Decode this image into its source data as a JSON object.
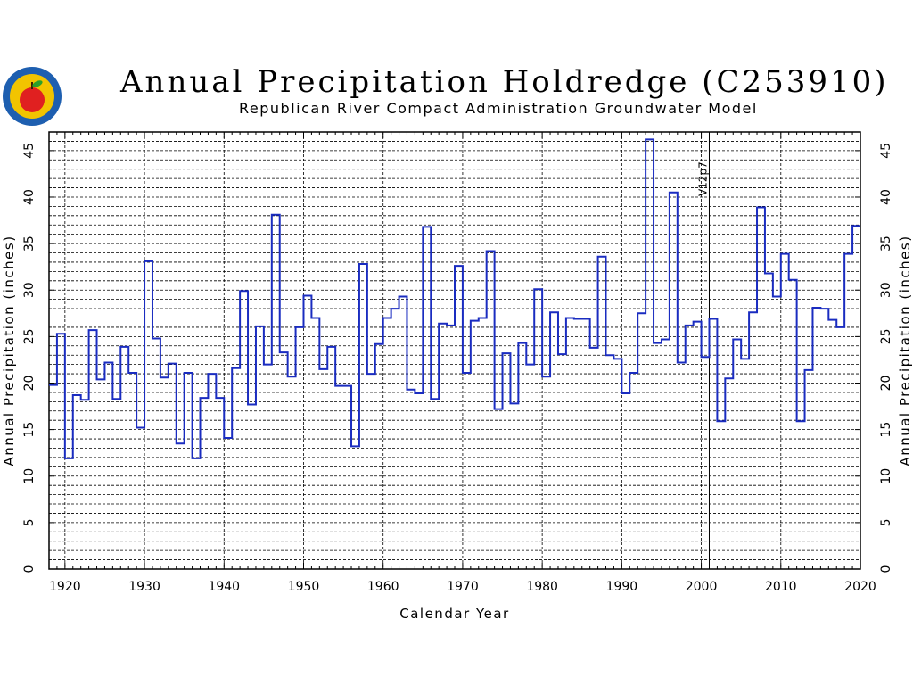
{
  "page": {
    "title": "Annual Precipitation Holdredge (C253910)",
    "subtitle": "Republican River Compact Administration Groundwater Model"
  },
  "colors": {
    "series": "#1a2cc0",
    "grid": "#000000",
    "logo_ring": "#1e5fb0",
    "logo_inner": "#f2c400",
    "apple": "#e02020"
  },
  "chart_data": {
    "type": "line",
    "step": true,
    "title": "Annual Precipitation Holdredge (C253910)",
    "subtitle": "Republican River Compact Administration Groundwater Model",
    "xlabel": "Calendar Year",
    "ylabel": "Annual Precipitation (inches)",
    "xlim": [
      1918,
      2020
    ],
    "ylim": [
      0,
      47
    ],
    "xticks": [
      1920,
      1930,
      1940,
      1950,
      1960,
      1970,
      1980,
      1990,
      2000,
      2010,
      2020
    ],
    "yticks": [
      0,
      5,
      10,
      15,
      20,
      25,
      30,
      35,
      40,
      45
    ],
    "grid": true,
    "annotations": [
      {
        "text": "V12p7",
        "x": 2001
      }
    ],
    "series": [
      {
        "x": [
          1918,
          1919,
          1920,
          1921,
          1922,
          1923,
          1924,
          1925,
          1926,
          1927,
          1928,
          1929,
          1930,
          1931,
          1932,
          1933,
          1934,
          1935,
          1936,
          1937,
          1938,
          1939,
          1940,
          1941,
          1942,
          1943,
          1944,
          1945,
          1946,
          1947,
          1948,
          1949,
          1950,
          1951,
          1952,
          1953,
          1954,
          1955,
          1956,
          1957,
          1958,
          1959,
          1960,
          1961,
          1962,
          1963,
          1964,
          1965,
          1966,
          1967,
          1968,
          1969,
          1970,
          1971,
          1972,
          1973,
          1974,
          1975,
          1976,
          1977,
          1978,
          1979,
          1980,
          1981,
          1982,
          1983,
          1984,
          1985,
          1986,
          1987,
          1988,
          1989,
          1990,
          1991,
          1992,
          1993,
          1994,
          1995,
          1996,
          1997,
          1998,
          1999,
          2000,
          2001,
          2002,
          2003,
          2004,
          2005,
          2006,
          2007,
          2008,
          2009,
          2010,
          2011,
          2012,
          2013,
          2014,
          2015,
          2016,
          2017,
          2018,
          2019
        ],
        "values": [
          19.8,
          25.3,
          11.9,
          18.7,
          18.2,
          25.7,
          20.4,
          22.2,
          18.3,
          23.9,
          21.1,
          15.2,
          33.1,
          24.8,
          20.6,
          22.1,
          13.5,
          21.1,
          11.9,
          18.4,
          21.0,
          18.4,
          14.1,
          21.6,
          29.9,
          17.7,
          26.1,
          22.0,
          38.1,
          23.3,
          20.7,
          26.0,
          29.4,
          27.0,
          21.5,
          23.9,
          19.7,
          19.7,
          13.2,
          32.8,
          21.0,
          24.2,
          27.0,
          28.0,
          29.3,
          19.3,
          18.9,
          36.8,
          18.3,
          26.4,
          26.2,
          32.6,
          21.1,
          26.7,
          27.0,
          34.2,
          17.2,
          23.2,
          17.8,
          24.3,
          22.0,
          30.1,
          20.7,
          27.6,
          23.1,
          27.0,
          26.9,
          26.9,
          23.8,
          33.6,
          23.0,
          22.6,
          18.9,
          21.1,
          27.5,
          46.2,
          24.3,
          24.7,
          40.5,
          22.2,
          26.2,
          26.6,
          22.8,
          26.9,
          15.9,
          20.5,
          24.7,
          22.6,
          27.6,
          38.9,
          31.8,
          29.3,
          33.9,
          31.1,
          15.9,
          21.4,
          28.1,
          28.0,
          26.8,
          26.0,
          33.9,
          36.9
        ]
      }
    ]
  }
}
